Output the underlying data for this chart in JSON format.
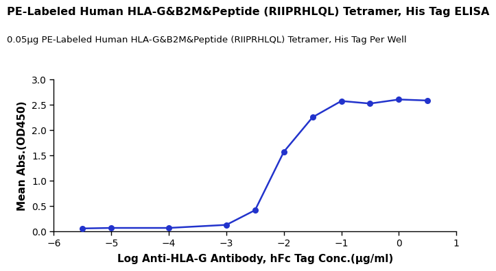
{
  "title": "PE-Labeled Human HLA-G&B2M&Peptide (RIIPRHLQL) Tetramer, His Tag ELISA",
  "subtitle": "0.05μg PE-Labeled Human HLA-G&B2M&Peptide (RIIPRHLQL) Tetramer, His Tag Per Well",
  "xlabel": "Log Anti-HLA-G Antibody, hFc Tag Conc.(μg/ml)",
  "ylabel": "Mean Abs.(OD450)",
  "x_data": [
    -5.5,
    -5.0,
    -4.0,
    -3.0,
    -2.5,
    -2.0,
    -1.5,
    -1.0,
    -0.5,
    0.0,
    0.5
  ],
  "y_data": [
    0.06,
    0.07,
    0.07,
    0.13,
    0.42,
    1.57,
    2.25,
    2.57,
    2.52,
    2.6,
    2.58
  ],
  "xlim": [
    -6,
    1
  ],
  "ylim": [
    0,
    3.0
  ],
  "xticks": [
    -6,
    -5,
    -4,
    -3,
    -2,
    -1,
    0,
    1
  ],
  "yticks": [
    0.0,
    0.5,
    1.0,
    1.5,
    2.0,
    2.5,
    3.0
  ],
  "line_color": "#2233cc",
  "marker_color": "#2233cc",
  "title_fontsize": 11.5,
  "subtitle_fontsize": 9.5,
  "axis_label_fontsize": 11,
  "tick_fontsize": 10,
  "background_color": "#ffffff",
  "logec50_init": -2.5,
  "hill_init": 2.0
}
